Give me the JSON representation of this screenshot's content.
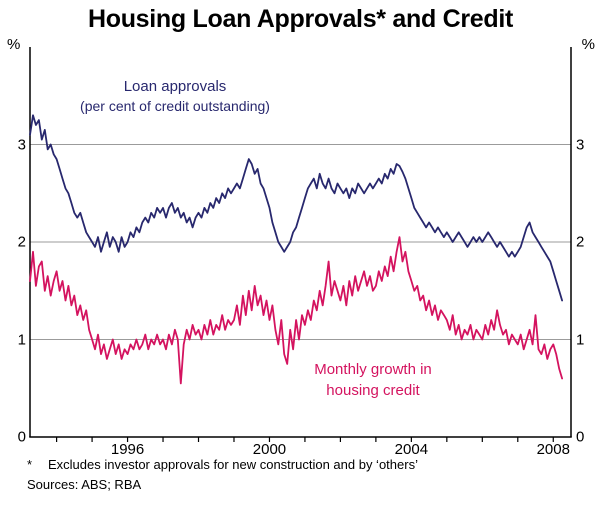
{
  "title": "Housing Loan Approvals* and Credit",
  "annotations": {
    "loan_line1": "Loan approvals",
    "loan_line2": "(per cent of credit outstanding)",
    "growth_line1": "Monthly growth in",
    "growth_line2": "housing credit"
  },
  "footnotes": {
    "marker": "*",
    "line1": "Excludes investor approvals for new construction and by ‘others’",
    "sources": "Sources: ABS; RBA"
  },
  "colors": {
    "navy": "#28286e",
    "pink": "#d4135f",
    "grid": "#9b9b9b",
    "axis": "#000000"
  },
  "chart_data": {
    "type": "line",
    "title": "Housing Loan Approvals* and Credit",
    "y_unit": "%",
    "y_range": [
      0,
      4
    ],
    "yticks": [
      0,
      1,
      2,
      3
    ],
    "gridlines": [
      1,
      2,
      3
    ],
    "x_range": [
      1993.25,
      2008.5
    ],
    "x_tick_labels": [
      1996,
      2000,
      2004,
      2008
    ],
    "x_start": 1993.25,
    "x_step": 0.0833333,
    "legend_position": "inline-annotations",
    "grid": "horizontal-only",
    "series": [
      {
        "name": "Loan approvals (per cent of credit outstanding)",
        "color": "#28286e",
        "values": [
          3.1,
          3.3,
          3.2,
          3.25,
          3.05,
          3.15,
          2.95,
          3.0,
          2.9,
          2.85,
          2.75,
          2.65,
          2.55,
          2.5,
          2.4,
          2.3,
          2.25,
          2.3,
          2.2,
          2.1,
          2.05,
          2.0,
          1.95,
          2.05,
          1.9,
          2.0,
          2.1,
          1.95,
          2.05,
          2.0,
          1.9,
          2.05,
          1.95,
          2.0,
          2.1,
          2.05,
          2.15,
          2.1,
          2.2,
          2.25,
          2.2,
          2.3,
          2.25,
          2.35,
          2.3,
          2.35,
          2.25,
          2.35,
          2.4,
          2.3,
          2.35,
          2.25,
          2.3,
          2.2,
          2.25,
          2.15,
          2.25,
          2.3,
          2.25,
          2.35,
          2.3,
          2.4,
          2.35,
          2.45,
          2.4,
          2.5,
          2.45,
          2.55,
          2.5,
          2.55,
          2.6,
          2.55,
          2.65,
          2.75,
          2.85,
          2.8,
          2.7,
          2.75,
          2.6,
          2.55,
          2.45,
          2.35,
          2.2,
          2.1,
          2.0,
          1.95,
          1.9,
          1.95,
          2.0,
          2.1,
          2.15,
          2.25,
          2.35,
          2.45,
          2.55,
          2.6,
          2.65,
          2.55,
          2.7,
          2.6,
          2.55,
          2.65,
          2.55,
          2.5,
          2.6,
          2.55,
          2.5,
          2.55,
          2.45,
          2.55,
          2.5,
          2.6,
          2.55,
          2.5,
          2.55,
          2.6,
          2.55,
          2.6,
          2.65,
          2.6,
          2.7,
          2.65,
          2.75,
          2.7,
          2.8,
          2.78,
          2.72,
          2.65,
          2.55,
          2.45,
          2.35,
          2.3,
          2.25,
          2.2,
          2.15,
          2.2,
          2.15,
          2.1,
          2.15,
          2.1,
          2.05,
          2.1,
          2.05,
          2.0,
          2.05,
          2.1,
          2.05,
          2.0,
          1.95,
          2.0,
          2.05,
          2.0,
          2.05,
          2.0,
          2.05,
          2.1,
          2.05,
          2.0,
          1.95,
          2.0,
          1.95,
          1.9,
          1.85,
          1.9,
          1.85,
          1.9,
          1.95,
          2.05,
          2.15,
          2.2,
          2.1,
          2.05,
          2.0,
          1.95,
          1.9,
          1.85,
          1.8,
          1.7,
          1.6,
          1.5,
          1.4
        ]
      },
      {
        "name": "Monthly growth in housing credit",
        "color": "#d4135f",
        "values": [
          1.6,
          1.9,
          1.55,
          1.75,
          1.8,
          1.5,
          1.65,
          1.45,
          1.6,
          1.7,
          1.5,
          1.6,
          1.4,
          1.55,
          1.35,
          1.45,
          1.25,
          1.35,
          1.2,
          1.3,
          1.1,
          1.0,
          0.9,
          1.05,
          0.85,
          0.95,
          0.8,
          0.9,
          1.0,
          0.85,
          0.95,
          0.8,
          0.9,
          0.85,
          0.95,
          0.9,
          1.0,
          0.9,
          0.95,
          1.05,
          0.9,
          1.0,
          0.95,
          1.05,
          0.95,
          1.0,
          0.9,
          1.05,
          0.95,
          1.1,
          1.0,
          0.55,
          0.95,
          1.1,
          1.0,
          1.15,
          1.05,
          1.1,
          1.0,
          1.15,
          1.05,
          1.2,
          1.05,
          1.15,
          1.1,
          1.25,
          1.1,
          1.2,
          1.15,
          1.2,
          1.35,
          1.15,
          1.45,
          1.25,
          1.5,
          1.3,
          1.55,
          1.35,
          1.45,
          1.25,
          1.4,
          1.2,
          1.35,
          1.1,
          0.95,
          1.2,
          0.85,
          0.75,
          1.1,
          0.9,
          1.2,
          1.0,
          1.25,
          1.15,
          1.3,
          1.2,
          1.4,
          1.3,
          1.5,
          1.35,
          1.55,
          1.8,
          1.45,
          1.6,
          1.5,
          1.4,
          1.55,
          1.35,
          1.6,
          1.45,
          1.65,
          1.5,
          1.6,
          1.7,
          1.55,
          1.65,
          1.5,
          1.55,
          1.7,
          1.6,
          1.75,
          1.65,
          1.85,
          1.7,
          1.9,
          2.05,
          1.8,
          1.9,
          1.7,
          1.6,
          1.5,
          1.55,
          1.4,
          1.45,
          1.3,
          1.4,
          1.25,
          1.35,
          1.2,
          1.3,
          1.25,
          1.2,
          1.1,
          1.25,
          1.05,
          1.15,
          1.0,
          1.1,
          1.05,
          1.15,
          1.0,
          1.1,
          1.05,
          1.0,
          1.15,
          1.05,
          1.2,
          1.1,
          1.3,
          1.15,
          1.05,
          1.1,
          0.95,
          1.05,
          1.0,
          0.95,
          1.05,
          0.9,
          1.0,
          1.1,
          0.95,
          1.25,
          0.9,
          0.85,
          0.95,
          0.8,
          0.9,
          0.95,
          0.85,
          0.7,
          0.6
        ]
      }
    ]
  }
}
